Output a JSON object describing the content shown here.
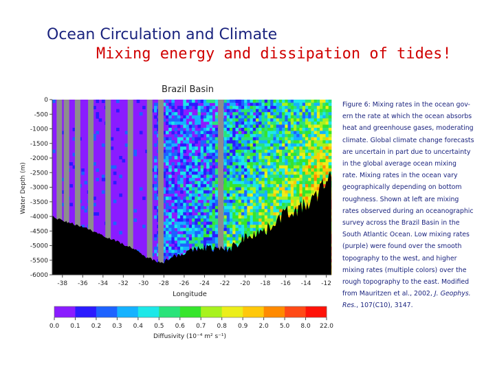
{
  "slide": {
    "title": "Ocean Circulation and Climate",
    "subtitle": "Mixing energy and dissipation of tides!"
  },
  "caption": {
    "lines": [
      "Figure 6: Mixing rates in the ocean gov-",
      "ern the rate at which the ocean absorbs",
      "heat and greenhouse gases, moderating",
      "climate. Global climate change forecasts",
      "are uncertain in part due to uncertainty",
      "in the global average ocean mixing",
      "rate. Mixing rates in the ocean vary",
      "geographically depending on bottom",
      "roughness. Shown at left are mixing",
      "rates observed during an oceanographic",
      "survey across the Brazil Basin in the",
      "South Atlantic Ocean. Low mixing rates",
      "(purple) were found over the smooth",
      "topography to the west, and higher",
      "mixing rates (multiple colors) over the",
      "rough topography to the east. Modified",
      "from Mauritzen et al., 2002,"
    ],
    "journal": "J. Geophys.",
    "journal_tail": "Res.",
    "ref": ", 107(C10), 3147."
  },
  "chart_data": {
    "type": "heatmap",
    "title": "Brazil Basin",
    "xlabel": "Longitude",
    "ylabel": "Water Depth (m)",
    "xlim": [
      -39,
      -11.5
    ],
    "ylim": [
      0,
      -6000
    ],
    "xticks": [
      -38,
      -36,
      -34,
      -32,
      -30,
      -28,
      -26,
      -24,
      -22,
      -20,
      -18,
      -16,
      -14,
      -12
    ],
    "yticks": [
      0,
      -500,
      -1000,
      -1500,
      -2000,
      -2500,
      -3000,
      -3500,
      -4000,
      -4500,
      -5000,
      -5500,
      -6000
    ],
    "ytick_labels": [
      "0",
      "-500",
      "-1000",
      "-1500",
      "-2000",
      "-2500",
      "-3000",
      "-3500",
      "-4000",
      "-4500",
      "-5000",
      "-5500",
      "-6000"
    ],
    "no_data_columns": [
      -38.3,
      -37.6,
      -36.5,
      -35.2,
      -33.5,
      -31.3,
      -29.4,
      -28.3,
      -22.4
    ],
    "seafloor_depth": {
      "longitude": [
        -39,
        -38,
        -37,
        -36,
        -35,
        -34,
        -33,
        -32,
        -31,
        -30,
        -29,
        -28,
        -27,
        -26,
        -25,
        -24,
        -23,
        -22,
        -21,
        -20,
        -19,
        -18,
        -17,
        -16,
        -15,
        -14,
        -13,
        -12,
        -11.5
      ],
      "depth": [
        -4000,
        -4150,
        -4250,
        -4350,
        -4500,
        -4650,
        -4800,
        -4950,
        -5100,
        -5350,
        -5500,
        -5550,
        -5350,
        -5250,
        -5150,
        -5050,
        -5100,
        -5150,
        -5000,
        -4700,
        -4550,
        -4500,
        -4150,
        -3850,
        -3800,
        -3600,
        -3350,
        -2700,
        -2700
      ]
    },
    "colorbar": {
      "label": "Diffusivity (10⁻⁴ m² s⁻¹)",
      "ticks": [
        "0.0",
        "0.1",
        "0.2",
        "0.3",
        "0.4",
        "0.5",
        "0.6",
        "0.7",
        "0.8",
        "0.9",
        "2.0",
        "5.0",
        "8.0",
        "22.0"
      ],
      "colors": [
        "#8a1cff",
        "#2b1bff",
        "#1d63ff",
        "#15b2ff",
        "#1de8e8",
        "#2ae37a",
        "#36e52c",
        "#a8f21e",
        "#ecee1a",
        "#ffc80a",
        "#ff8a00",
        "#ff4a16",
        "#ff1208"
      ]
    },
    "mixing_pattern": "low diffusivity (purple) over smooth western topography; high, multi-colored diffusivity over rough eastern topography"
  }
}
